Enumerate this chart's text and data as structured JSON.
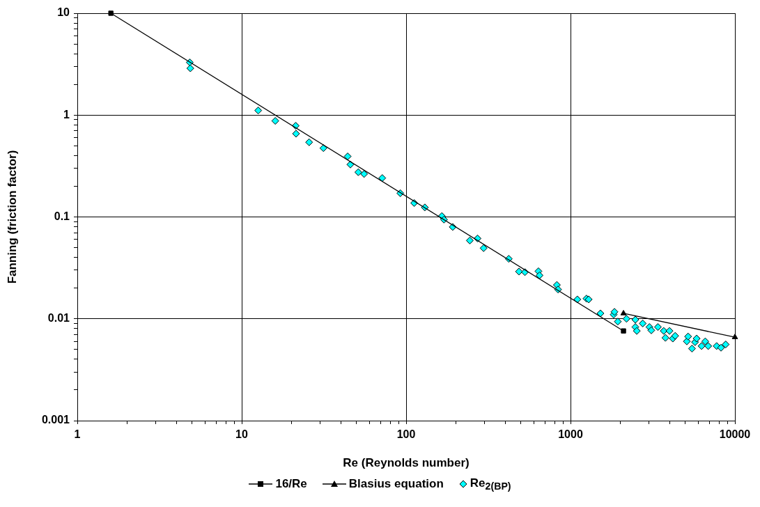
{
  "chart_data": {
    "type": "scatter",
    "xlabel": "Re (Reynolds number)",
    "ylabel": "Fanning (friction factor)",
    "log": "xy",
    "grid": true,
    "legend": "bottom",
    "xlim": [
      1,
      10000
    ],
    "ylim": [
      0.001,
      10
    ],
    "xticks": [
      1,
      {
        "value": 2,
        "label": null
      },
      {
        "value": 3,
        "label": null
      },
      {
        "value": 4,
        "label": null
      },
      {
        "value": 5,
        "label": null
      },
      {
        "value": 6,
        "label": null
      },
      {
        "value": 7,
        "label": null
      },
      {
        "value": 8,
        "label": null
      },
      {
        "value": 9,
        "label": null
      },
      10,
      {
        "value": 20,
        "label": null
      },
      {
        "value": 30,
        "label": null
      },
      {
        "value": 40,
        "label": null
      },
      {
        "value": 50,
        "label": null
      },
      {
        "value": 60,
        "label": null
      },
      {
        "value": 70,
        "label": null
      },
      {
        "value": 80,
        "label": null
      },
      {
        "value": 90,
        "label": null
      },
      100,
      {
        "value": 200,
        "label": null
      },
      {
        "value": 300,
        "label": null
      },
      {
        "value": 400,
        "label": null
      },
      {
        "value": 500,
        "label": null
      },
      {
        "value": 600,
        "label": null
      },
      {
        "value": 700,
        "label": null
      },
      {
        "value": 800,
        "label": null
      },
      {
        "value": 900,
        "label": null
      },
      1000,
      {
        "value": 2000,
        "label": null
      },
      {
        "value": 3000,
        "label": null
      },
      {
        "value": 4000,
        "label": null
      },
      {
        "value": 5000,
        "label": null
      },
      {
        "value": 6000,
        "label": null
      },
      {
        "value": 7000,
        "label": null
      },
      {
        "value": 8000,
        "label": null
      },
      {
        "value": 9000,
        "label": null
      },
      10000
    ],
    "yticks": [
      0.001,
      {
        "value": 0.002,
        "label": null
      },
      {
        "value": 0.003,
        "label": null
      },
      {
        "value": 0.004,
        "label": null
      },
      {
        "value": 0.005,
        "label": null
      },
      {
        "value": 0.006,
        "label": null
      },
      {
        "value": 0.007,
        "label": null
      },
      {
        "value": 0.008,
        "label": null
      },
      {
        "value": 0.009,
        "label": null
      },
      0.01,
      {
        "value": 0.02,
        "label": null
      },
      {
        "value": 0.03,
        "label": null
      },
      {
        "value": 0.04,
        "label": null
      },
      {
        "value": 0.05,
        "label": null
      },
      {
        "value": 0.06,
        "label": null
      },
      {
        "value": 0.07,
        "label": null
      },
      {
        "value": 0.08,
        "label": null
      },
      {
        "value": 0.09,
        "label": null
      },
      0.1,
      {
        "value": 0.2,
        "label": null
      },
      {
        "value": 0.3,
        "label": null
      },
      {
        "value": 0.4,
        "label": null
      },
      {
        "value": 0.5,
        "label": null
      },
      {
        "value": 0.6,
        "label": null
      },
      {
        "value": 0.7,
        "label": null
      },
      {
        "value": 0.8,
        "label": null
      },
      {
        "value": 0.9,
        "label": null
      },
      1,
      {
        "value": 2,
        "label": null
      },
      {
        "value": 3,
        "label": null
      },
      {
        "value": 4,
        "label": null
      },
      {
        "value": 5,
        "label": null
      },
      {
        "value": 6,
        "label": null
      },
      {
        "value": 7,
        "label": null
      },
      {
        "value": 8,
        "label": null
      },
      {
        "value": 9,
        "label": null
      },
      10
    ],
    "series": [
      {
        "name": "16/Re",
        "type": "line",
        "marker": "square",
        "color": "#000000",
        "x": [
          1.6,
          2100
        ],
        "values": [
          10,
          0.0076
        ]
      },
      {
        "name": "Blasius equation",
        "type": "line",
        "marker": "triangle",
        "color": "#000000",
        "x": [
          2100,
          10000
        ],
        "values": [
          0.0113,
          0.0066
        ]
      },
      {
        "name": "Re$_{2(BP)}$",
        "marker": "diamond",
        "color": "#00ffff",
        "x": [
          4.83,
          4.87,
          12.6,
          16.0,
          21.3,
          21.4,
          25.7,
          31.4,
          44.1,
          45.8,
          51.2,
          55.5,
          71.6,
          92.2,
          112,
          130,
          165,
          170,
          192,
          244,
          272,
          296,
          421,
          486,
          528,
          638,
          648,
          826,
          840,
          1100,
          1250,
          1290,
          1520,
          1830,
          1850,
          1940,
          2190,
          2480,
          2480,
          2530,
          2750,
          3020,
          3100,
          3400,
          3690,
          3780,
          4000,
          4190,
          4330,
          5100,
          5190,
          5480,
          5720,
          5850,
          6270,
          6600,
          6880,
          7740,
          8230,
          8790
        ],
        "values": [
          3.29,
          2.88,
          1.11,
          0.877,
          0.785,
          0.657,
          0.541,
          0.474,
          0.393,
          0.327,
          0.275,
          0.264,
          0.241,
          0.171,
          0.137,
          0.124,
          0.102,
          0.0942,
          0.0797,
          0.0587,
          0.0615,
          0.0494,
          0.0388,
          0.0291,
          0.0287,
          0.0293,
          0.0267,
          0.0215,
          0.0194,
          0.0155,
          0.0158,
          0.0155,
          0.0113,
          0.011,
          0.0117,
          0.0094,
          0.01,
          0.0098,
          0.0083,
          0.0076,
          0.009,
          0.0083,
          0.0077,
          0.0083,
          0.0076,
          0.0065,
          0.0076,
          0.0064,
          0.0068,
          0.006,
          0.0067,
          0.0051,
          0.0059,
          0.0064,
          0.0054,
          0.006,
          0.0054,
          0.0054,
          0.0052,
          0.0056
        ]
      }
    ]
  }
}
